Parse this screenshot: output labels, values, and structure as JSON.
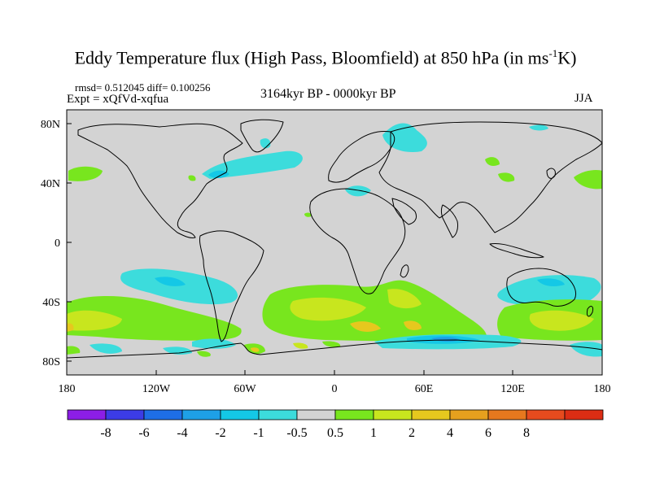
{
  "header": {
    "title_main": "Eddy Temperature flux (High Pass, Bloomfield) at 850 hPa (in ms",
    "title_sup": "-1",
    "title_end": "K)",
    "stats": "rmsd= 0.512045 diff= 0.100256",
    "experiment": "Expt = xQfVd-xqfua",
    "period": "3164kyr BP - 0000kyr BP",
    "season": "JJA"
  },
  "map": {
    "background_color": "#d3d3d3",
    "lat_ticks": [
      "80N",
      "40N",
      "0",
      "40S",
      "80S"
    ],
    "lon_ticks": [
      "180",
      "120W",
      "60W",
      "0",
      "60E",
      "120E",
      "180"
    ]
  },
  "colorbar": {
    "colors": [
      "#8c1ee6",
      "#3c3ce6",
      "#1e6ee6",
      "#1ea0e6",
      "#14c8e6",
      "#3cdcdc",
      "#d3d3d3",
      "#78e61e",
      "#c8e61e",
      "#e6c81e",
      "#e6a01e",
      "#e6781e",
      "#e64b1e",
      "#dc2d14"
    ],
    "labels": [
      "-8",
      "-6",
      "-4",
      "-2",
      "-1",
      "-0.5",
      "0.5",
      "1",
      "2",
      "4",
      "6",
      "8"
    ]
  }
}
